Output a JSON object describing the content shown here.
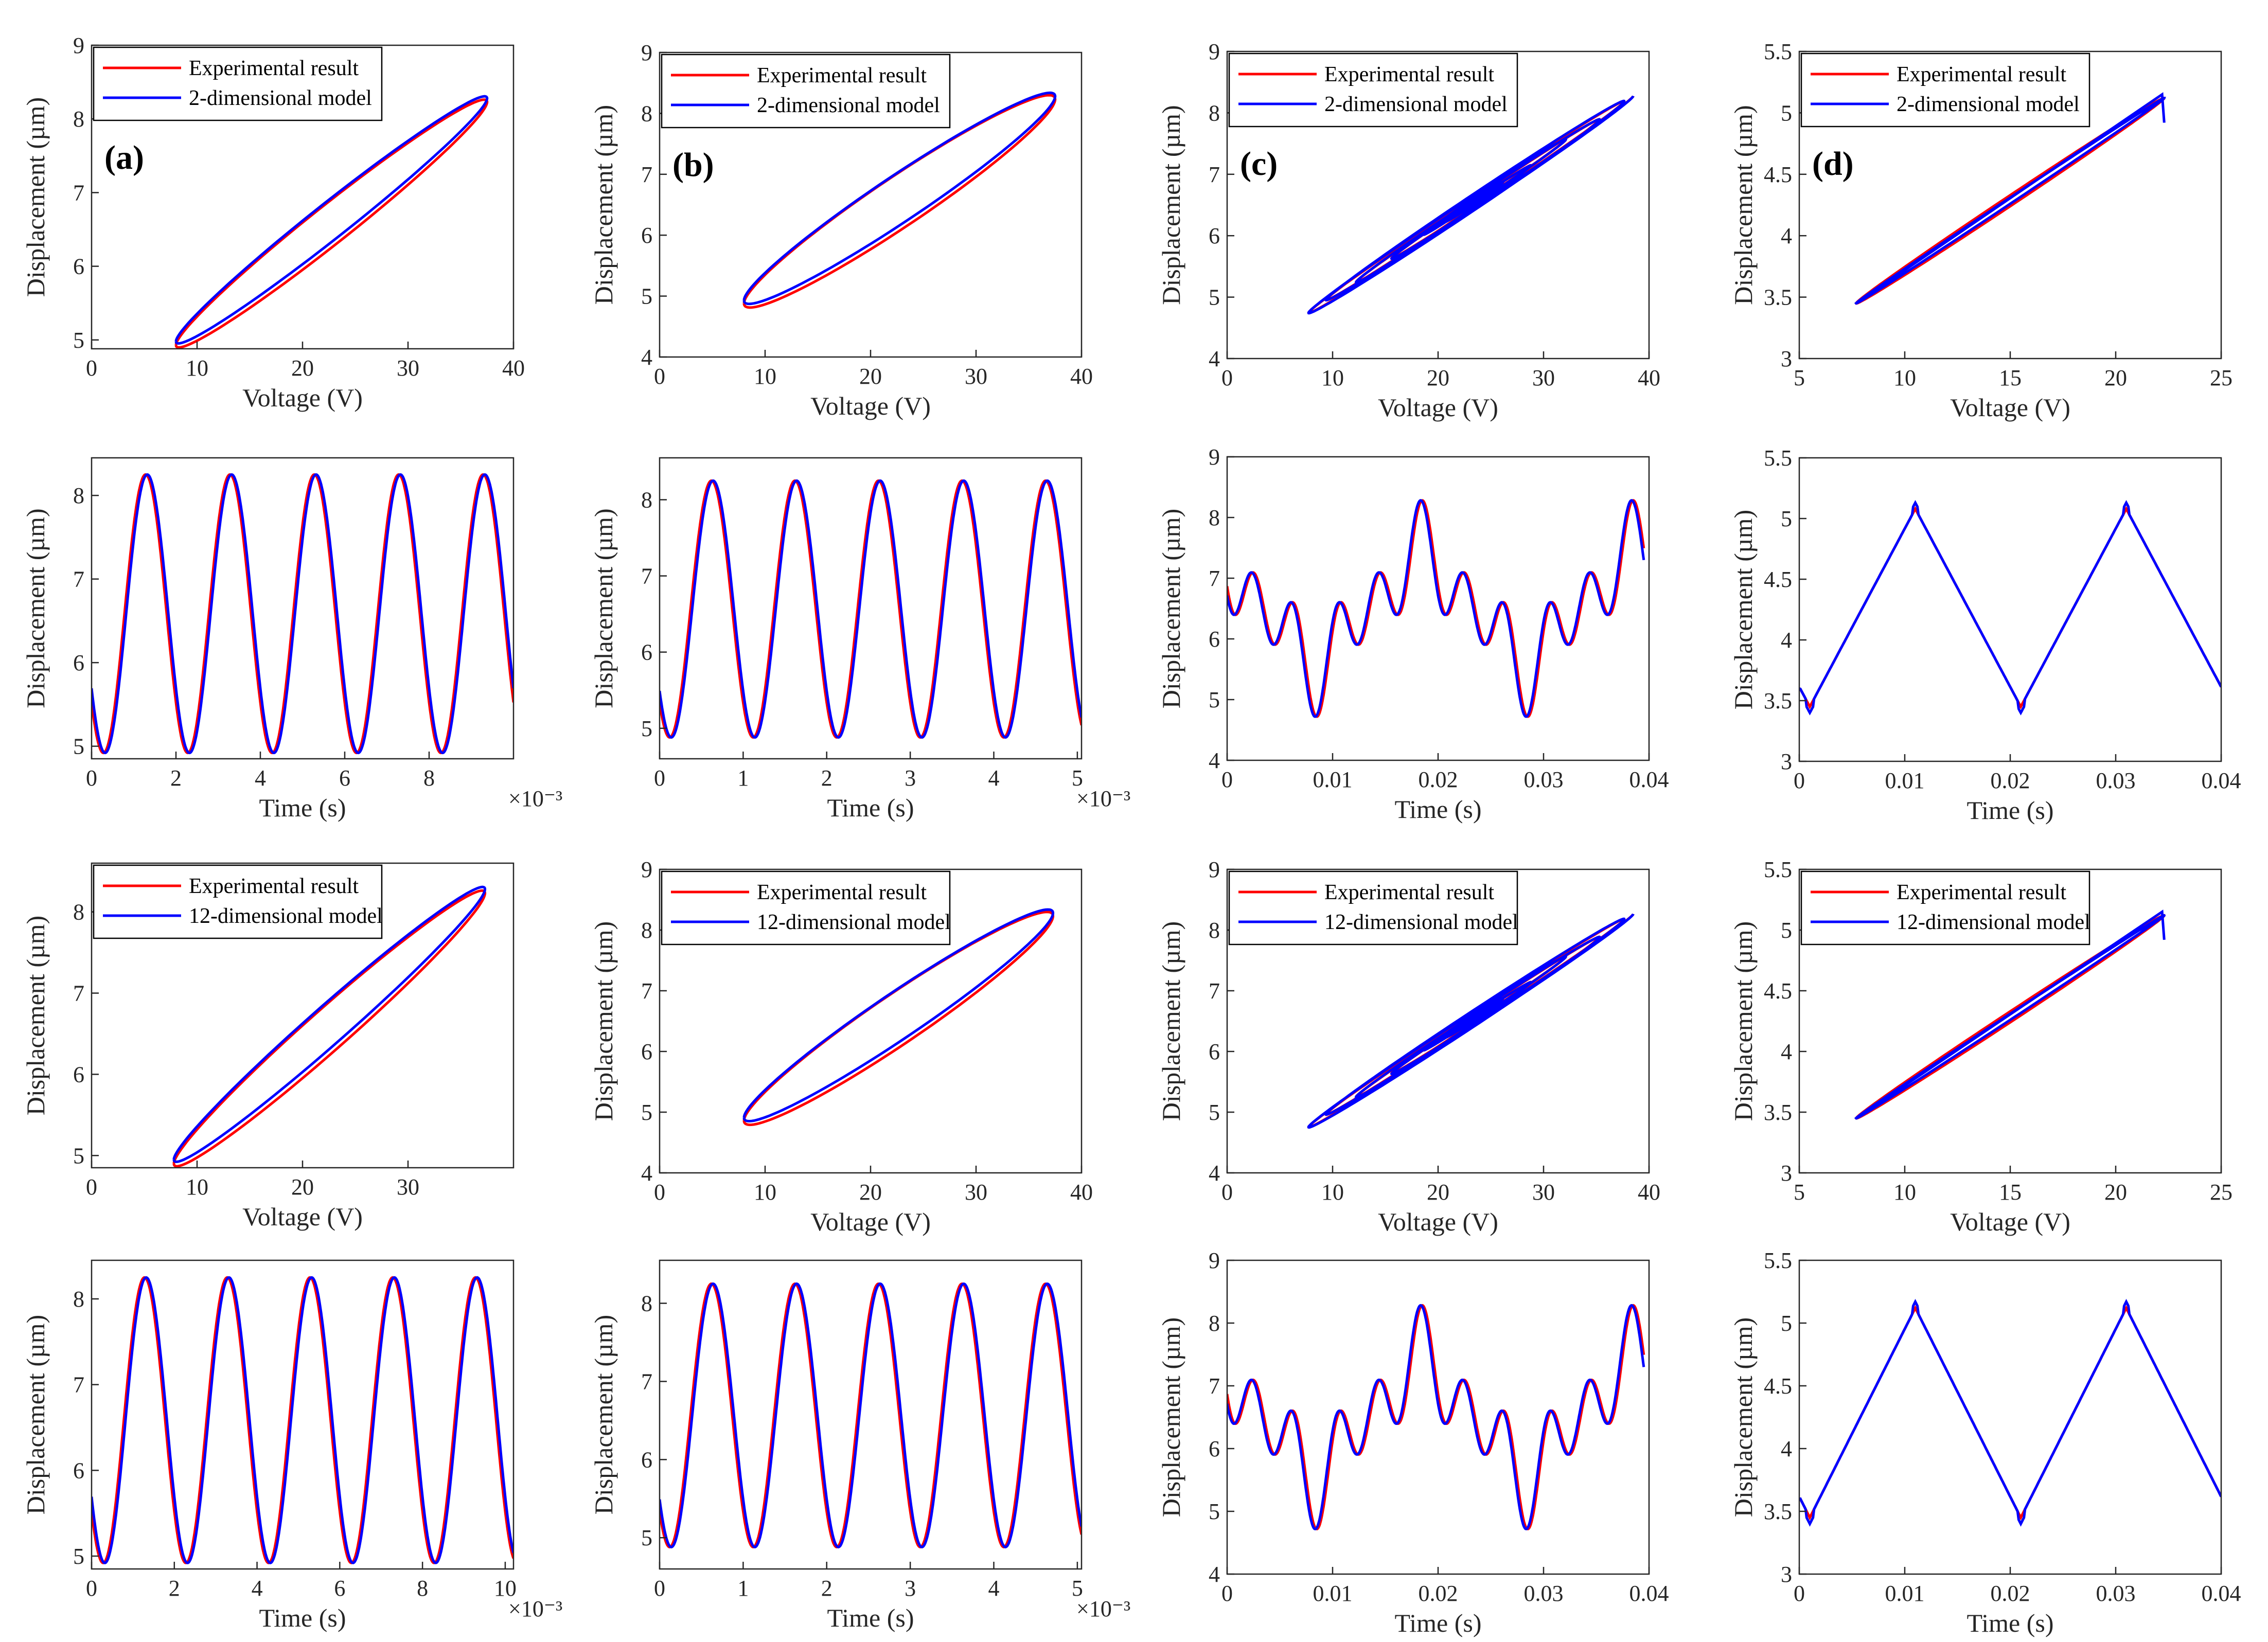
{
  "chart_data": {
    "type": "line",
    "layout": "4x4 grid of line plots; each panel compares an experimental result with a model",
    "colors": {
      "experimental": "#ff0000",
      "model": "#0000ff",
      "axis": "#262626"
    },
    "panels": [
      {
        "id": "a-hyst-2d",
        "kind": "hysteresis",
        "letter": "(a)",
        "xlabel": "Voltage (V)",
        "ylabel": "Displacement (µm)",
        "xlim": [
          0,
          40
        ],
        "ylim": [
          4.88,
          9
        ],
        "xticks": [
          "0",
          "10",
          "20",
          "30",
          "40"
        ],
        "yticks": [
          "5",
          "6",
          "7",
          "8",
          "9"
        ],
        "legend": [
          "Experimental result",
          "2-dimensional model"
        ],
        "vmin": 8,
        "vmax": 37.5,
        "dmin": 4.95,
        "dmax": 8.25,
        "width": 0.11
      },
      {
        "id": "b-hyst-2d",
        "kind": "hysteresis",
        "letter": "(b)",
        "xlabel": "Voltage (V)",
        "ylabel": "Displacement (µm)",
        "xlim": [
          0,
          40
        ],
        "ylim": [
          4,
          9
        ],
        "xticks": [
          "0",
          "10",
          "20",
          "30",
          "40"
        ],
        "yticks": [
          "4",
          "5",
          "6",
          "7",
          "8",
          "9"
        ],
        "legend": [
          "Experimental result",
          "2-dimensional model"
        ],
        "vmin": 8,
        "vmax": 37.5,
        "dmin": 4.9,
        "dmax": 8.25,
        "width": 0.16
      },
      {
        "id": "c-hyst-2d",
        "kind": "spiral",
        "letter": "(c)",
        "xlabel": "Voltage (V)",
        "ylabel": "Displacement (µm)",
        "xlim": [
          0,
          40
        ],
        "ylim": [
          4,
          9
        ],
        "xticks": [
          "0",
          "10",
          "20",
          "30",
          "40"
        ],
        "yticks": [
          "4",
          "5",
          "6",
          "7",
          "8",
          "9"
        ],
        "legend": [
          "Experimental result",
          "2-dimensional model"
        ],
        "vmin": 7,
        "vmax": 38,
        "dmin": 4.75,
        "dmax": 8.3
      },
      {
        "id": "d-hyst-2d",
        "kind": "linearloop",
        "letter": "(d)",
        "xlabel": "Voltage (V)",
        "ylabel": "Displacement (µm)",
        "xlim": [
          5,
          25
        ],
        "ylim": [
          3,
          5.5
        ],
        "xticks": [
          "5",
          "10",
          "15",
          "20",
          "25"
        ],
        "yticks": [
          "3",
          "3.5",
          "4",
          "4.5",
          "5",
          "5.5"
        ],
        "legend": [
          "Experimental result",
          "2-dimensional model"
        ],
        "vmin": 7.7,
        "vmax": 22.3,
        "dmin": 3.45,
        "dmax": 5.12
      },
      {
        "id": "a-time-2d",
        "kind": "sine",
        "xlabel": "Time (s)",
        "ylabel": "Displacement (µm)",
        "exponent": "×10⁻³",
        "xlim": [
          0,
          10
        ],
        "ylim": [
          4.85,
          8.45
        ],
        "xticks": [
          "0",
          "2",
          "4",
          "6",
          "8"
        ],
        "xtickvals": [
          0,
          2,
          4,
          6,
          8
        ],
        "yticks": [
          "5",
          "6",
          "7",
          "8"
        ],
        "period": 2,
        "peak": 1.28,
        "dmin": 4.92,
        "dmax": 8.25
      },
      {
        "id": "b-time-2d",
        "kind": "sine",
        "xlabel": "Time (s)",
        "ylabel": "Displacement (µm)",
        "exponent": "×10⁻³",
        "xlim": [
          0,
          5.05
        ],
        "ylim": [
          4.6,
          8.55
        ],
        "xticks": [
          "0",
          "1",
          "2",
          "3",
          "4",
          "5"
        ],
        "xtickvals": [
          0,
          1,
          2,
          3,
          4,
          5
        ],
        "yticks": [
          "5",
          "6",
          "7",
          "8"
        ],
        "period": 1,
        "peak": 0.62,
        "dmin": 4.88,
        "dmax": 8.25
      },
      {
        "id": "c-time-2d",
        "kind": "multitone",
        "xlabel": "Time (s)",
        "ylabel": "Displacement (µm)",
        "xlim": [
          0,
          0.04
        ],
        "ylim": [
          4,
          9
        ],
        "xticks": [
          "0",
          "0.01",
          "0.02",
          "0.03",
          "0.04"
        ],
        "xtickvals": [
          0,
          0.01,
          0.02,
          0.03,
          0.04
        ],
        "yticks": [
          "4",
          "5",
          "6",
          "7",
          "8",
          "9"
        ],
        "dmin": 4.72,
        "dmax": 8.3
      },
      {
        "id": "d-time-2d",
        "kind": "triangle",
        "xlabel": "Time (s)",
        "ylabel": "Displacement (µm)",
        "xlim": [
          0,
          0.04
        ],
        "ylim": [
          3,
          5.5
        ],
        "xticks": [
          "0",
          "0.01",
          "0.02",
          "0.03",
          "0.04"
        ],
        "xtickvals": [
          0,
          0.01,
          0.02,
          0.03,
          0.04
        ],
        "yticks": [
          "3",
          "3.5",
          "4",
          "4.5",
          "5",
          "5.5"
        ],
        "dmin": 3.45,
        "dmax": 5.08
      },
      {
        "id": "a-hyst-12d",
        "kind": "hysteresis",
        "xlabel": "Voltage (V)",
        "ylabel": "Displacement (µm)",
        "xlim": [
          0,
          40
        ],
        "ylim": [
          4.85,
          8.6
        ],
        "xticks": [
          "0",
          "10",
          "20",
          "30"
        ],
        "yticks": [
          "5",
          "6",
          "7",
          "8"
        ],
        "legend": [
          "Experimental result",
          "12-dimensional model"
        ],
        "vmin": 7.8,
        "vmax": 37.3,
        "dmin": 4.92,
        "dmax": 8.25,
        "width": 0.11
      },
      {
        "id": "b-hyst-12d",
        "kind": "hysteresis",
        "xlabel": "Voltage (V)",
        "ylabel": "Displacement (µm)",
        "xlim": [
          0,
          40
        ],
        "ylim": [
          4,
          9
        ],
        "xticks": [
          "0",
          "10",
          "20",
          "30",
          "40"
        ],
        "yticks": [
          "4",
          "5",
          "6",
          "7",
          "8",
          "9"
        ],
        "legend": [
          "Experimental result",
          "12-dimensional model"
        ],
        "vmin": 8,
        "vmax": 37.3,
        "dmin": 4.88,
        "dmax": 8.25,
        "width": 0.16
      },
      {
        "id": "c-hyst-12d",
        "kind": "spiral",
        "xlabel": "Voltage (V)",
        "ylabel": "Displacement (µm)",
        "xlim": [
          0,
          40
        ],
        "ylim": [
          4,
          9
        ],
        "xticks": [
          "0",
          "10",
          "20",
          "30",
          "40"
        ],
        "yticks": [
          "4",
          "5",
          "6",
          "7",
          "8",
          "9"
        ],
        "legend": [
          "Experimental result",
          "12-dimensional model"
        ],
        "vmin": 7,
        "vmax": 38,
        "dmin": 4.75,
        "dmax": 8.28
      },
      {
        "id": "d-hyst-12d",
        "kind": "linearloop",
        "xlabel": "Voltage (V)",
        "ylabel": "Displacement (µm)",
        "xlim": [
          5,
          25
        ],
        "ylim": [
          3,
          5.5
        ],
        "xticks": [
          "5",
          "10",
          "15",
          "20",
          "25"
        ],
        "yticks": [
          "3",
          "3.5",
          "4",
          "4.5",
          "5",
          "5.5"
        ],
        "legend": [
          "Experimental result",
          "12-dimensional model"
        ],
        "vmin": 7.7,
        "vmax": 22.3,
        "dmin": 3.45,
        "dmax": 5.12
      },
      {
        "id": "a-time-12d",
        "kind": "sine",
        "xlabel": "Time (s)",
        "ylabel": "Displacement (µm)",
        "exponent": "×10⁻³",
        "xlim": [
          0,
          10.2
        ],
        "ylim": [
          4.85,
          8.45
        ],
        "xticks": [
          "0",
          "2",
          "4",
          "6",
          "8",
          "10"
        ],
        "xtickvals": [
          0,
          2,
          4,
          6,
          8,
          10
        ],
        "yticks": [
          "5",
          "6",
          "7",
          "8"
        ],
        "period": 2,
        "peak": 1.28,
        "dmin": 4.92,
        "dmax": 8.25
      },
      {
        "id": "b-time-12d",
        "kind": "sine",
        "xlabel": "Time (s)",
        "ylabel": "Displacement (µm)",
        "exponent": "×10⁻³",
        "xlim": [
          0,
          5.05
        ],
        "ylim": [
          4.6,
          8.55
        ],
        "xticks": [
          "0",
          "1",
          "2",
          "3",
          "4",
          "5"
        ],
        "xtickvals": [
          0,
          1,
          2,
          3,
          4,
          5
        ],
        "yticks": [
          "5",
          "6",
          "7",
          "8"
        ],
        "period": 1,
        "peak": 0.62,
        "dmin": 4.88,
        "dmax": 8.25
      },
      {
        "id": "c-time-12d",
        "kind": "multitone",
        "xlabel": "Time (s)",
        "ylabel": "Displacement (µm)",
        "xlim": [
          0,
          0.04
        ],
        "ylim": [
          4,
          9
        ],
        "xticks": [
          "0",
          "0.01",
          "0.02",
          "0.03",
          "0.04"
        ],
        "xtickvals": [
          0,
          0.01,
          0.02,
          0.03,
          0.04
        ],
        "yticks": [
          "4",
          "5",
          "6",
          "7",
          "8",
          "9"
        ],
        "dmin": 4.72,
        "dmax": 8.3
      },
      {
        "id": "d-time-12d",
        "kind": "triangle",
        "xlabel": "Time (s)",
        "ylabel": "Displacement (µm)",
        "xlim": [
          0,
          0.04
        ],
        "ylim": [
          3,
          5.5
        ],
        "xticks": [
          "0",
          "0.01",
          "0.02",
          "0.03",
          "0.04"
        ],
        "xtickvals": [
          0,
          0.01,
          0.02,
          0.03,
          0.04
        ],
        "yticks": [
          "3",
          "3.5",
          "4",
          "4.5",
          "5",
          "5.5"
        ],
        "dmin": 3.45,
        "dmax": 5.12
      }
    ]
  }
}
